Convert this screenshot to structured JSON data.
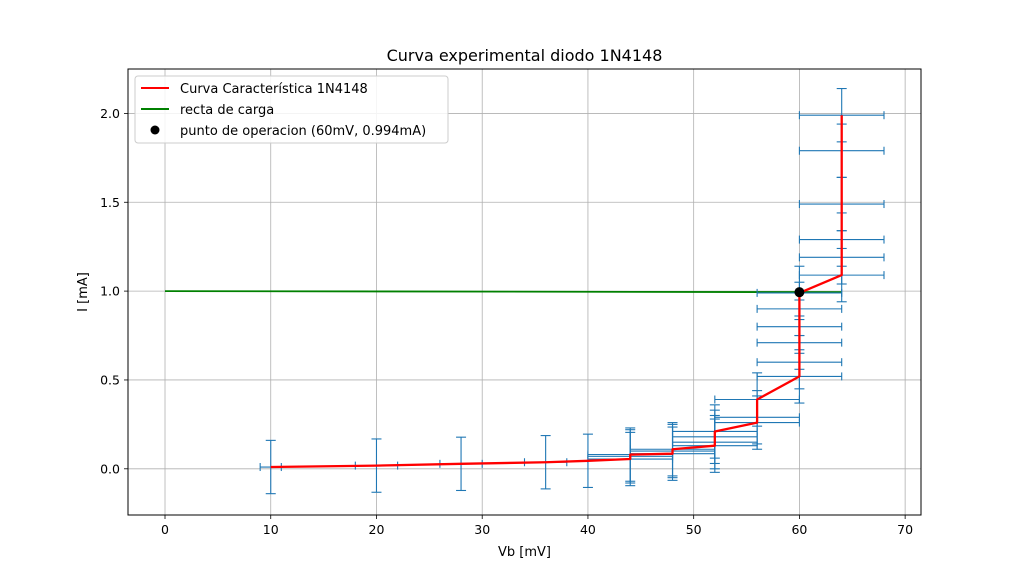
{
  "chart_data": {
    "type": "line",
    "title": "Curva experimental diodo 1N4148",
    "xlabel": "Vb [mV]",
    "ylabel": "I [mA]",
    "xlim": [
      -3.5,
      71.5
    ],
    "ylim": [
      -0.26,
      2.25
    ],
    "grid": true,
    "legend_position": "top-left",
    "x_ticks": [
      0,
      10,
      20,
      30,
      40,
      50,
      60,
      70
    ],
    "x_tick_labels": [
      "0",
      "10",
      "20",
      "30",
      "40",
      "50",
      "60",
      "70"
    ],
    "y_ticks": [
      0.0,
      0.5,
      1.0,
      1.5,
      2.0
    ],
    "y_tick_labels": [
      "0.0",
      "0.5",
      "1.0",
      "1.5",
      "2.0"
    ],
    "series": [
      {
        "name": "Curva Característica 1N4148",
        "kind": "line",
        "color": "#ff0000",
        "x": [
          10,
          20,
          28,
          36,
          40,
          44,
          44,
          48,
          48,
          52,
          52,
          56,
          56,
          60,
          60,
          64,
          64
        ],
        "y": [
          0.01,
          0.018,
          0.028,
          0.037,
          0.045,
          0.055,
          0.08,
          0.085,
          0.11,
          0.13,
          0.21,
          0.26,
          0.39,
          0.52,
          0.99,
          1.09,
          1.99
        ]
      },
      {
        "name": "recta de carga",
        "kind": "line",
        "color": "#008000",
        "x": [
          0,
          64
        ],
        "y": [
          1.0,
          0.994
        ]
      },
      {
        "name": "punto de operacion (60mV, 0.994mA)",
        "kind": "point",
        "color": "#000000",
        "x": [
          60
        ],
        "y": [
          0.994
        ]
      }
    ],
    "error_bars": {
      "color": "#1f77b4",
      "points": [
        {
          "x": 10,
          "y": 0.01,
          "xerr": 1,
          "yerr": 0.15
        },
        {
          "x": 20,
          "y": 0.018,
          "xerr": 2,
          "yerr": 0.15
        },
        {
          "x": 28,
          "y": 0.028,
          "xerr": 2,
          "yerr": 0.15
        },
        {
          "x": 36,
          "y": 0.037,
          "xerr": 2,
          "yerr": 0.15
        },
        {
          "x": 40,
          "y": 0.045,
          "xerr": 0,
          "yerr": 0.15
        },
        {
          "x": 44,
          "y": 0.055,
          "xerr": 4,
          "yerr": 0.15
        },
        {
          "x": 44,
          "y": 0.07,
          "xerr": 4,
          "yerr": 0.15
        },
        {
          "x": 44,
          "y": 0.08,
          "xerr": 4,
          "yerr": 0.15
        },
        {
          "x": 48,
          "y": 0.085,
          "xerr": 4,
          "yerr": 0.15
        },
        {
          "x": 48,
          "y": 0.1,
          "xerr": 4,
          "yerr": 0.15
        },
        {
          "x": 48,
          "y": 0.11,
          "xerr": 4,
          "yerr": 0.15
        },
        {
          "x": 52,
          "y": 0.13,
          "xerr": 4,
          "yerr": 0.15
        },
        {
          "x": 52,
          "y": 0.15,
          "xerr": 4,
          "yerr": 0.15
        },
        {
          "x": 52,
          "y": 0.18,
          "xerr": 4,
          "yerr": 0.15
        },
        {
          "x": 52,
          "y": 0.21,
          "xerr": 4,
          "yerr": 0.15
        },
        {
          "x": 56,
          "y": 0.26,
          "xerr": 4,
          "yerr": 0.15
        },
        {
          "x": 56,
          "y": 0.29,
          "xerr": 4,
          "yerr": 0.15
        },
        {
          "x": 56,
          "y": 0.39,
          "xerr": 4,
          "yerr": 0.15
        },
        {
          "x": 60,
          "y": 0.52,
          "xerr": 4,
          "yerr": 0.15
        },
        {
          "x": 60,
          "y": 0.6,
          "xerr": 4,
          "yerr": 0.15
        },
        {
          "x": 60,
          "y": 0.71,
          "xerr": 4,
          "yerr": 0.15
        },
        {
          "x": 60,
          "y": 0.8,
          "xerr": 4,
          "yerr": 0.15
        },
        {
          "x": 60,
          "y": 0.9,
          "xerr": 4,
          "yerr": 0.15
        },
        {
          "x": 60,
          "y": 0.99,
          "xerr": 4,
          "yerr": 0.15
        },
        {
          "x": 64,
          "y": 1.09,
          "xerr": 4,
          "yerr": 0.15
        },
        {
          "x": 64,
          "y": 1.19,
          "xerr": 4,
          "yerr": 0.15
        },
        {
          "x": 64,
          "y": 1.29,
          "xerr": 4,
          "yerr": 0.15
        },
        {
          "x": 64,
          "y": 1.49,
          "xerr": 4,
          "yerr": 0.15
        },
        {
          "x": 64,
          "y": 1.79,
          "xerr": 4,
          "yerr": 0.15
        },
        {
          "x": 64,
          "y": 1.99,
          "xerr": 4,
          "yerr": 0.15
        }
      ]
    }
  }
}
